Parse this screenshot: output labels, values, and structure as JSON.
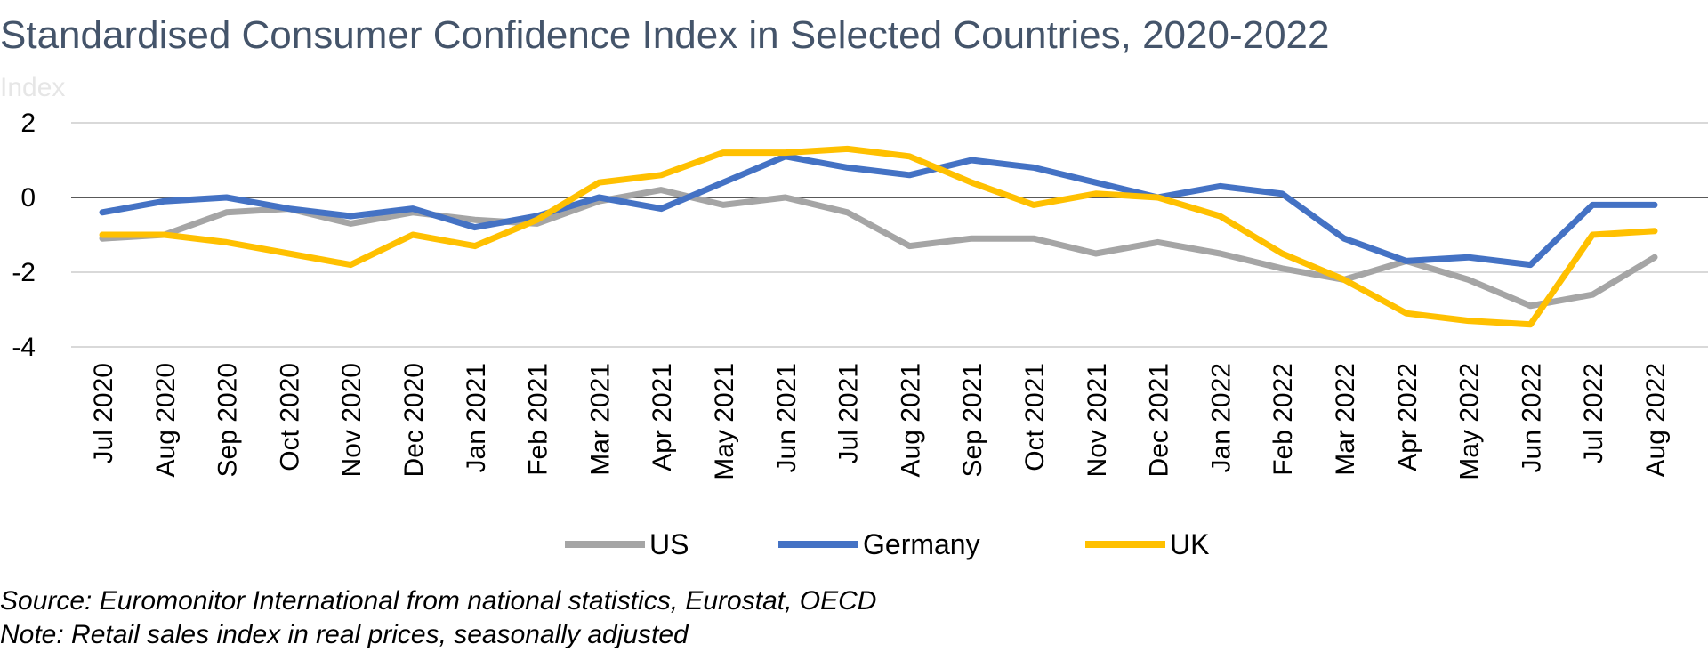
{
  "chart_data": {
    "type": "line",
    "title": "Standardised Consumer Confidence Index in Selected Countries, 2020-2022",
    "unit_label": "Index",
    "categories": [
      "Jul 2020",
      "Aug 2020",
      "Sep 2020",
      "Oct 2020",
      "Nov 2020",
      "Dec 2020",
      "Jan 2021",
      "Feb 2021",
      "Mar 2021",
      "Apr 2021",
      "May 2021",
      "Jun 2021",
      "Jul 2021",
      "Aug 2021",
      "Sep 2021",
      "Oct 2021",
      "Nov 2021",
      "Dec 2021",
      "Jan 2022",
      "Feb 2022",
      "Mar 2022",
      "Apr 2022",
      "May 2022",
      "Jun 2022",
      "Jul 2022",
      "Aug 2022"
    ],
    "y_ticks": [
      2,
      0,
      -2,
      -4
    ],
    "ylim": [
      -4,
      2
    ],
    "grid": true,
    "legend_position": "bottom",
    "series": [
      {
        "name": "US",
        "color": "#A5A5A5",
        "values": [
          -1.1,
          -1.0,
          -0.4,
          -0.3,
          -0.7,
          -0.4,
          -0.6,
          -0.7,
          -0.1,
          0.2,
          -0.2,
          0.0,
          -0.4,
          -1.3,
          -1.1,
          -1.1,
          -1.5,
          -1.2,
          -1.5,
          -1.9,
          -2.2,
          -1.7,
          -2.2,
          -2.9,
          -2.6,
          -1.6
        ]
      },
      {
        "name": "Germany",
        "color": "#4472C4",
        "values": [
          -0.4,
          -0.1,
          0.0,
          -0.3,
          -0.5,
          -0.3,
          -0.8,
          -0.5,
          0.0,
          -0.3,
          0.4,
          1.1,
          0.8,
          0.6,
          1.0,
          0.8,
          0.4,
          0.0,
          0.3,
          0.1,
          -1.1,
          -1.7,
          -1.6,
          -1.8,
          -0.2,
          -0.2
        ]
      },
      {
        "name": "UK",
        "color": "#FFC000",
        "values": [
          -1.0,
          -1.0,
          -1.2,
          -1.5,
          -1.8,
          -1.0,
          -1.3,
          -0.6,
          0.4,
          0.6,
          1.2,
          1.2,
          1.3,
          1.1,
          0.4,
          -0.2,
          0.1,
          0.0,
          -0.5,
          -1.5,
          -2.2,
          -3.1,
          -3.3,
          -3.4,
          -1.0,
          -0.9
        ]
      }
    ]
  },
  "footer": {
    "source": "Source: Euromonitor International from national statistics, Eurostat, OECD",
    "note": "Note: Retail sales index in real prices, seasonally adjusted"
  }
}
